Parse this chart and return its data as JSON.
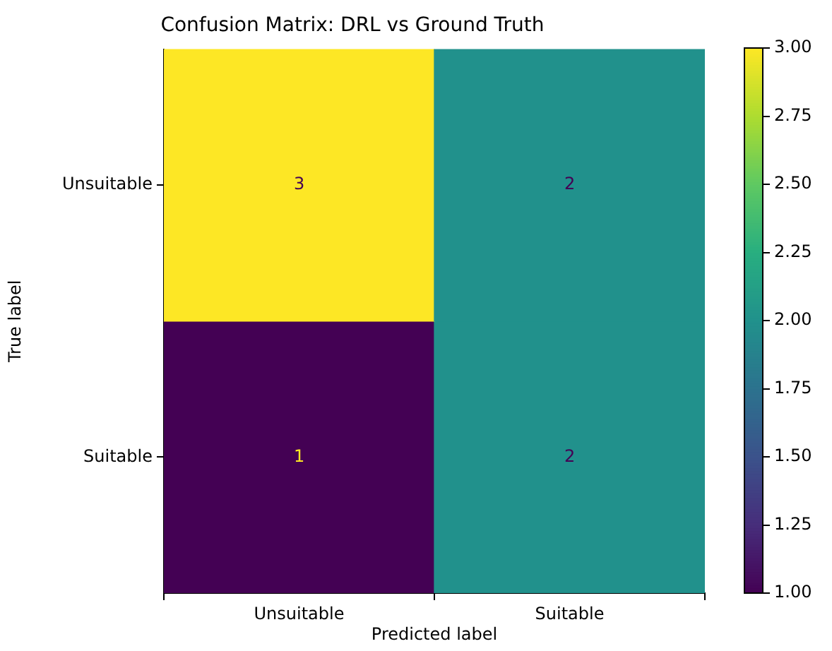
{
  "chart_data": {
    "type": "heatmap",
    "title": "Confusion Matrix: DRL vs Ground Truth",
    "xlabel": "Predicted label",
    "ylabel": "True label",
    "categories": [
      "Unsuitable",
      "Suitable"
    ],
    "y_categories": [
      "Unsuitable",
      "Suitable"
    ],
    "cells": [
      [
        3,
        2
      ],
      [
        1,
        2
      ]
    ],
    "clim": [
      1,
      3
    ],
    "cticks": [
      {
        "value": 1,
        "label": "1.00"
      },
      {
        "value": 1.25,
        "label": "1.25"
      },
      {
        "value": 1.5,
        "label": "1.50"
      },
      {
        "value": 1.75,
        "label": "1.75"
      },
      {
        "value": 2,
        "label": "2.00"
      },
      {
        "value": 2.25,
        "label": "2.25"
      },
      {
        "value": 2.5,
        "label": "2.50"
      },
      {
        "value": 2.75,
        "label": "2.75"
      },
      {
        "value": 3,
        "label": "3.00"
      }
    ],
    "data_labels": true
  }
}
